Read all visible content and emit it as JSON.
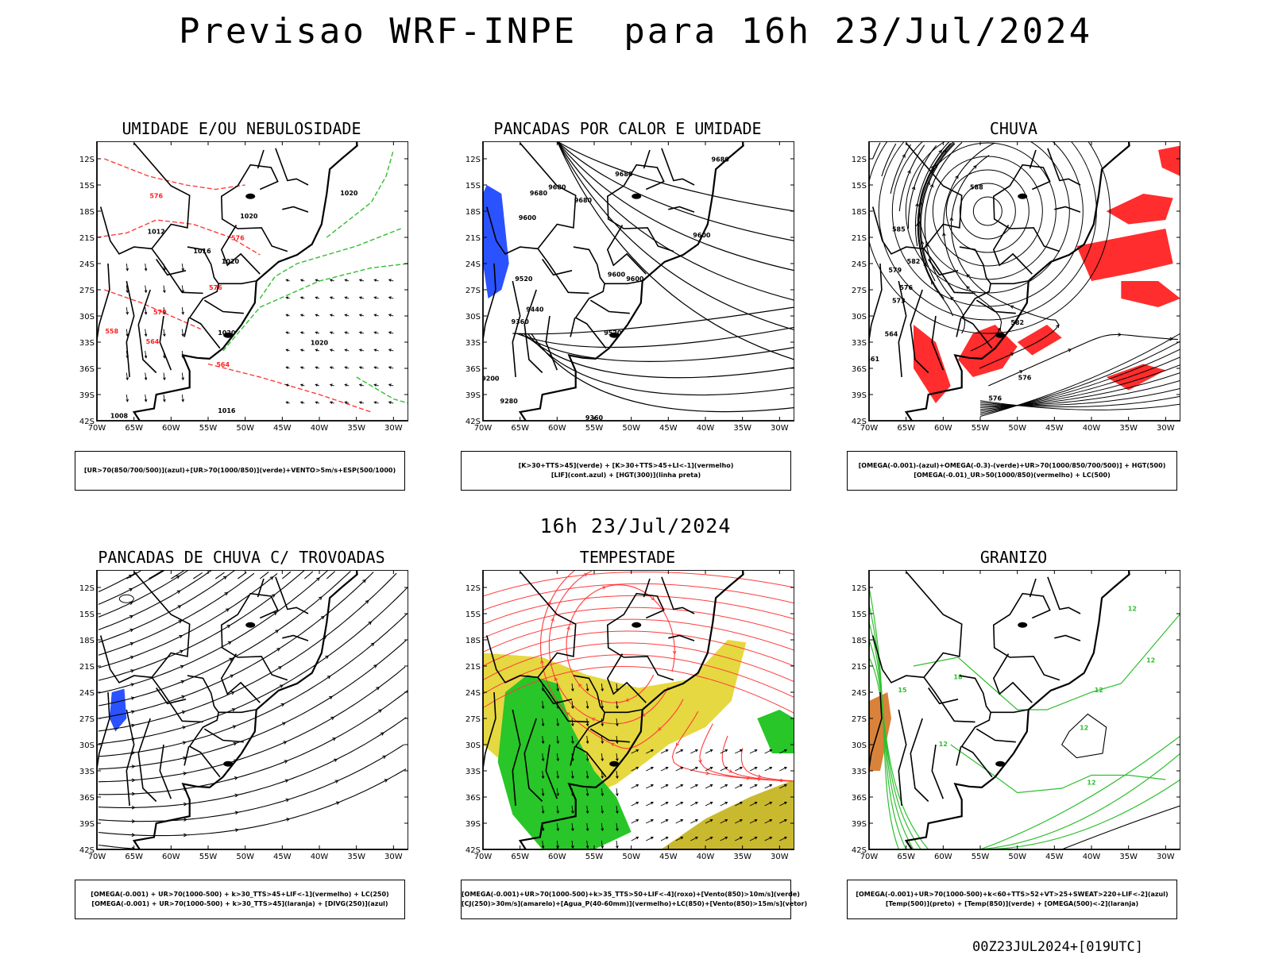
{
  "title": "Previsao WRF-INPE  para 16h 23/Jul/2024",
  "subtitle": "16h 23/Jul/2024",
  "footer": "00Z23JUL2024+[019UTC]",
  "lat_labels": [
    "12S",
    "15S",
    "18S",
    "21S",
    "24S",
    "27S",
    "30S",
    "33S",
    "36S",
    "39S",
    "42S"
  ],
  "lon_labels": [
    "70W",
    "65W",
    "60W",
    "55W",
    "50W",
    "45W",
    "40W",
    "35W",
    "30W"
  ],
  "panels": [
    {
      "title": "UMIDADE E/OU NEBULOSIDADE",
      "legend": [
        "[UR>70(850/700/500)](azul)+[UR>70(1000/850)](verde)+VENTO>5m/s+ESP(500/1000)"
      ],
      "contour_labels": [
        {
          "text": "1020",
          "lon": -49.5,
          "lat": -18.8,
          "color": "#000"
        },
        {
          "text": "1016",
          "lon": -55.8,
          "lat": -22.8,
          "color": "#000"
        },
        {
          "text": "1020",
          "lon": -52,
          "lat": -24,
          "color": "#000"
        },
        {
          "text": "1020",
          "lon": -52.5,
          "lat": -32.2,
          "color": "#000"
        },
        {
          "text": "1020",
          "lon": -40,
          "lat": -33.3,
          "color": "#000"
        },
        {
          "text": "1016",
          "lon": -52.5,
          "lat": -41.1,
          "color": "#000"
        },
        {
          "text": "1008",
          "lon": -67,
          "lat": -41.7,
          "color": "#000"
        },
        {
          "text": "1012",
          "lon": -62,
          "lat": -20.6,
          "color": "#000"
        },
        {
          "text": "1020",
          "lon": -36,
          "lat": -16.2,
          "color": "#000"
        },
        {
          "text": "576",
          "lon": -51,
          "lat": -21.3,
          "color": "#ff2020"
        },
        {
          "text": "576",
          "lon": -54,
          "lat": -27,
          "color": "#ff2020"
        },
        {
          "text": "576",
          "lon": -62,
          "lat": -16.5,
          "color": "#ff2020"
        },
        {
          "text": "570",
          "lon": -61.5,
          "lat": -29.8,
          "color": "#ff2020"
        },
        {
          "text": "564",
          "lon": -62.5,
          "lat": -33.2,
          "color": "#ff2020"
        },
        {
          "text": "564",
          "lon": -53,
          "lat": -35.8,
          "color": "#ff2020"
        },
        {
          "text": "558",
          "lon": -68,
          "lat": -32,
          "color": "#ff2020"
        }
      ]
    },
    {
      "title": "PANCADAS POR CALOR E UMIDADE",
      "legend": [
        "[K>30+TTS>45](verde) + [K>30+TTS>45+LI<-1](vermelho)",
        "[LIF](cont.azul) + [HGT(300)](linha preta)"
      ],
      "contour_labels": [
        {
          "text": "9680",
          "lon": -51,
          "lat": -14,
          "color": "#000"
        },
        {
          "text": "9680",
          "lon": -60,
          "lat": -15.5,
          "color": "#000"
        },
        {
          "text": "9680",
          "lon": -56.5,
          "lat": -17,
          "color": "#000"
        },
        {
          "text": "9680",
          "lon": -62.5,
          "lat": -16.2,
          "color": "#000"
        },
        {
          "text": "9680",
          "lon": -38,
          "lat": -12.3,
          "color": "#000"
        },
        {
          "text": "9600",
          "lon": -64,
          "lat": -19,
          "color": "#000"
        },
        {
          "text": "9600",
          "lon": -40.5,
          "lat": -21,
          "color": "#000"
        },
        {
          "text": "9600",
          "lon": -52,
          "lat": -25.5,
          "color": "#000"
        },
        {
          "text": "9600",
          "lon": -49.5,
          "lat": -26,
          "color": "#000"
        },
        {
          "text": "9520",
          "lon": -64.5,
          "lat": -26,
          "color": "#000"
        },
        {
          "text": "9520",
          "lon": -52.5,
          "lat": -32.2,
          "color": "#000"
        },
        {
          "text": "9440",
          "lon": -63,
          "lat": -29.5,
          "color": "#000"
        },
        {
          "text": "9360",
          "lon": -65,
          "lat": -30.9,
          "color": "#000"
        },
        {
          "text": "9200",
          "lon": -69,
          "lat": -37.4,
          "color": "#000"
        },
        {
          "text": "9280",
          "lon": -66.5,
          "lat": -40,
          "color": "#000"
        },
        {
          "text": "9360",
          "lon": -55,
          "lat": -41.9,
          "color": "#000"
        }
      ]
    },
    {
      "title": "CHUVA",
      "legend": [
        "[OMEGA(-0.001)-(azul)+OMEGA(-0.3)-(verde)+UR>70(1000/850/700/500)] + HGT(500)",
        "[OMEGA(-0.01)_UR>50(1000/850)(vermelho) + LC(500)"
      ],
      "contour_labels": [
        {
          "text": "588",
          "lon": -55.5,
          "lat": -15.5,
          "color": "#000"
        },
        {
          "text": "585",
          "lon": -66,
          "lat": -20.3,
          "color": "#000"
        },
        {
          "text": "582",
          "lon": -64,
          "lat": -24,
          "color": "#000"
        },
        {
          "text": "579",
          "lon": -66.5,
          "lat": -25,
          "color": "#000"
        },
        {
          "text": "576",
          "lon": -65,
          "lat": -27,
          "color": "#000"
        },
        {
          "text": "573",
          "lon": -66,
          "lat": -28.5,
          "color": "#000"
        },
        {
          "text": "582",
          "lon": -50,
          "lat": -31,
          "color": "#000"
        },
        {
          "text": "576",
          "lon": -49,
          "lat": -37.3,
          "color": "#000"
        },
        {
          "text": "576",
          "lon": -53,
          "lat": -39.7,
          "color": "#000"
        },
        {
          "text": "564",
          "lon": -67,
          "lat": -32.3,
          "color": "#000"
        },
        {
          "text": "561",
          "lon": -69.5,
          "lat": -35.2,
          "color": "#000"
        }
      ]
    },
    {
      "title": "PANCADAS DE CHUVA C/ TROVOADAS",
      "legend": [
        "[OMEGA(-0.001) + UR>70(1000-500) + k>30_TTS>45+LIF<-1](vermelho) + LC(250)",
        "[OMEGA(-0.001) + UR>70(1000-500) + k>30_TTS>45](laranja) + [DIVG(250)](azul)"
      ],
      "contour_labels": []
    },
    {
      "title": "TEMPESTADE",
      "legend": [
        "[OMEGA(-0.001)+UR>70(1000-500)+k>35_TTS>50+LIF<-4](roxo)+[Vento(850)>10m/s](verde)",
        "[CJ(250)>30m/s](amarelo)+[Agua_P(40-60mm)](vermelho)+LC(850)+[Vento(850)>15m/s](vetor)"
      ],
      "contour_labels": []
    },
    {
      "title": "GRANIZO",
      "legend": [
        "[OMEGA(-0.001)+UR>70(1000-500)+k<60+TTS>52+VT>25+SWEAT>220+LIF<-2](azul)",
        "[Temp(500)](preto) + [Temp(850)](verde) + [OMEGA(500)<-2](laranja)"
      ],
      "contour_labels": [
        {
          "text": "12",
          "lon": -34.5,
          "lat": -14.7,
          "color": "#2fbf2f"
        },
        {
          "text": "12",
          "lon": -32,
          "lat": -20.6,
          "color": "#2fbf2f"
        },
        {
          "text": "12",
          "lon": -39,
          "lat": -24,
          "color": "#2fbf2f"
        },
        {
          "text": "12",
          "lon": -41,
          "lat": -28.3,
          "color": "#2fbf2f"
        },
        {
          "text": "12",
          "lon": -60,
          "lat": -30.2,
          "color": "#2fbf2f"
        },
        {
          "text": "12",
          "lon": -40,
          "lat": -34.6,
          "color": "#2fbf2f"
        },
        {
          "text": "15",
          "lon": -65.5,
          "lat": -24,
          "color": "#2fbf2f"
        },
        {
          "text": "18",
          "lon": -58,
          "lat": -22.5,
          "color": "#2fbf2f"
        }
      ]
    }
  ]
}
